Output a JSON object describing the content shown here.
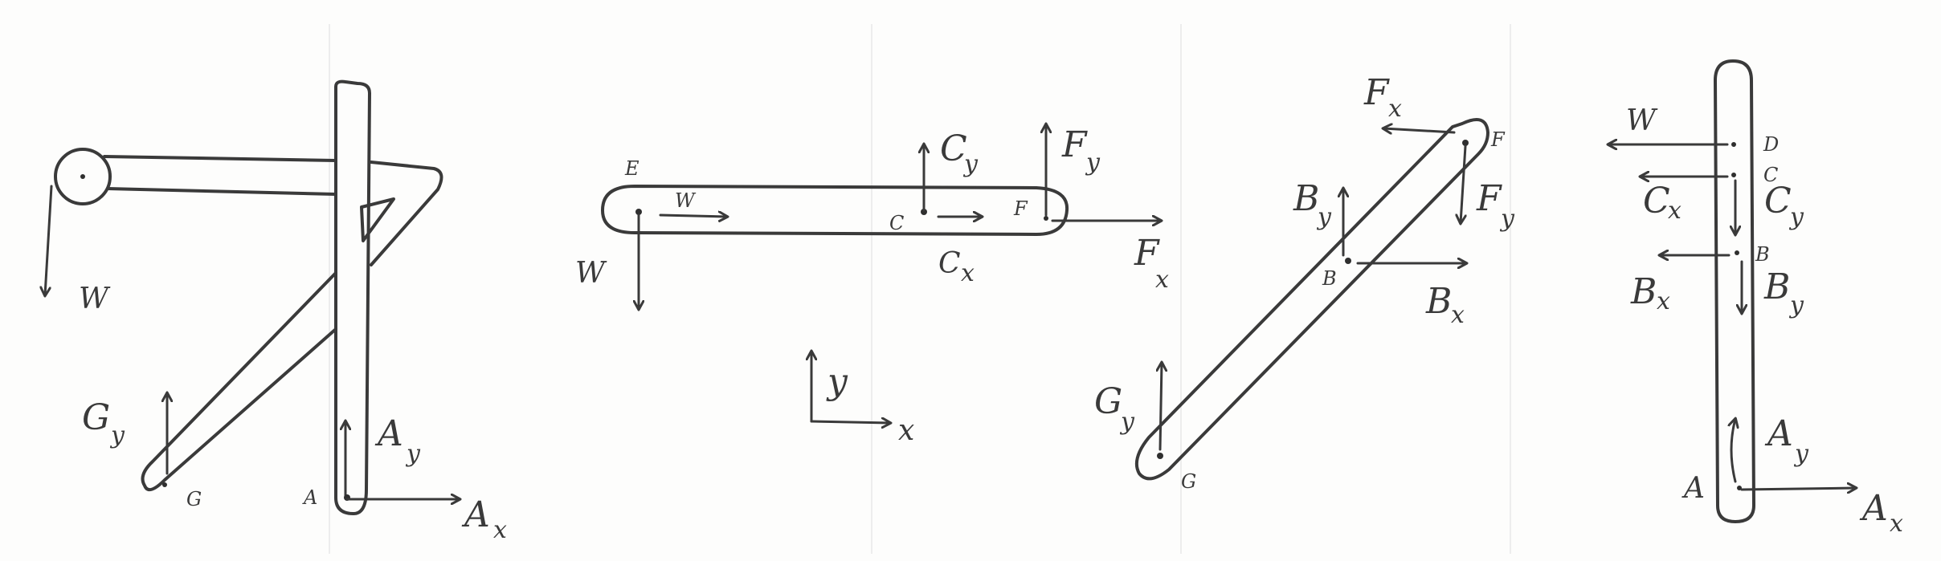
{
  "diagram1": {
    "labels": {
      "w": "W",
      "gy": "G",
      "gy_sub": "y",
      "ay": "A",
      "ay_sub": "y",
      "ax": "A",
      "ax_sub": "x",
      "pt_g": "G",
      "pt_a": "A"
    }
  },
  "diagram2": {
    "labels": {
      "e": "E",
      "w_top": "W",
      "w_side": "W",
      "c": "C",
      "f": "F",
      "cy": "C",
      "cy_sub": "y",
      "cx": "C",
      "cx_sub": "x",
      "fy": "F",
      "fy_sub": "y",
      "fx": "F",
      "fx_sub": "x"
    }
  },
  "axes": {
    "y": "y",
    "x": "x"
  },
  "diagram3": {
    "labels": {
      "fx": "F",
      "fx_sub": "x",
      "f": "F",
      "fy": "F",
      "fy_sub": "y",
      "by": "B",
      "by_sub": "y",
      "b": "B",
      "bx": "B",
      "bx_sub": "x",
      "gy": "G",
      "gy_sub": "y",
      "g": "G"
    }
  },
  "diagram4": {
    "labels": {
      "w": "W",
      "d": "D",
      "c": "C",
      "cx": "C",
      "cx_sub": "x",
      "cy": "C",
      "cy_sub": "y",
      "b": "B",
      "bx": "B",
      "bx_sub": "x",
      "by": "B",
      "by_sub": "y",
      "ay": "A",
      "ay_sub": "y",
      "a": "A",
      "ax": "A",
      "ax_sub": "x"
    }
  }
}
